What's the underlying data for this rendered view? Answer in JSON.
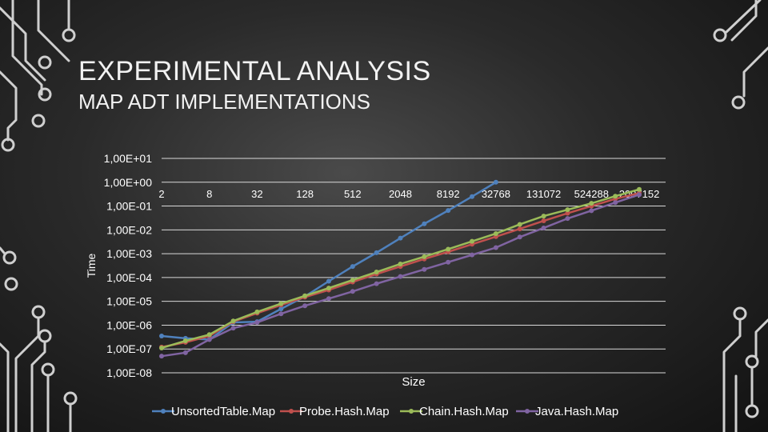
{
  "slide": {
    "title": "EXPERIMENTAL ANALYSIS",
    "subtitle": "MAP ADT IMPLEMENTATIONS"
  },
  "chart_data": {
    "type": "line",
    "xlabel": "Size",
    "ylabel": "Time",
    "y_scale": "log10",
    "ylim": [
      1e-08,
      10
    ],
    "y_tick_labels": [
      "1,00E+01",
      "1,00E+00",
      "1,00E-01",
      "1,00E-02",
      "1,00E-03",
      "1,00E-04",
      "1,00E-05",
      "1,00E-06",
      "1,00E-07",
      "1,00E-08"
    ],
    "categories": [
      "2",
      "8",
      "32",
      "128",
      "512",
      "2048",
      "8192",
      "32768",
      "131072",
      "524288",
      "2097152"
    ],
    "legend_position": "bottom",
    "grid": true,
    "series": [
      {
        "name": "UnsortedTable.Map",
        "color": "#4f81bd",
        "x": [
          1,
          1.5,
          2,
          2.5,
          3,
          3.5,
          4,
          4.5,
          5,
          5.5,
          6,
          6.5,
          7,
          7.5,
          8
        ],
        "y": [
          3.5e-07,
          2.8e-07,
          2.5e-07,
          1.3e-06,
          1.4e-06,
          4.8e-06,
          1.6e-05,
          7e-05,
          0.00029,
          0.0011,
          0.0045,
          0.018,
          0.065,
          0.25,
          1.0
        ]
      },
      {
        "name": "Probe.Hash.Map",
        "color": "#c0504d",
        "x": [
          1,
          1.5,
          2,
          2.5,
          3,
          3.5,
          4,
          4.5,
          5,
          5.5,
          6,
          6.5,
          7,
          7.5,
          8,
          8.5,
          9,
          9.5,
          10,
          10.5,
          11
        ],
        "y": [
          1.2e-07,
          1.9e-07,
          3.5e-07,
          1.4e-06,
          3.2e-06,
          7e-06,
          1.5e-05,
          3e-05,
          6.5e-05,
          0.00014,
          0.00029,
          0.0006,
          0.0012,
          0.0025,
          0.0052,
          0.011,
          0.024,
          0.05,
          0.1,
          0.2,
          0.35
        ]
      },
      {
        "name": "Chain.Hash.Map",
        "color": "#9bbb59",
        "x": [
          1,
          1.5,
          2,
          2.5,
          3,
          3.5,
          4,
          4.5,
          5,
          5.5,
          6,
          6.5,
          7,
          7.5,
          8,
          8.5,
          9,
          9.5,
          10,
          10.5,
          11
        ],
        "y": [
          1.1e-07,
          2.2e-07,
          4e-07,
          1.5e-06,
          3.6e-06,
          8e-06,
          1.7e-05,
          3.6e-05,
          7.8e-05,
          0.00017,
          0.00037,
          0.00075,
          0.00155,
          0.0033,
          0.007,
          0.017,
          0.038,
          0.07,
          0.13,
          0.26,
          0.5
        ]
      },
      {
        "name": "Java.Hash.Map",
        "color": "#8064a2",
        "x": [
          1,
          1.5,
          2,
          2.5,
          3,
          3.5,
          4,
          4.5,
          5,
          5.5,
          6,
          6.5,
          7,
          7.5,
          8,
          8.5,
          9,
          9.5,
          10,
          10.5,
          11
        ],
        "y": [
          5e-08,
          7e-08,
          2.5e-07,
          7.5e-07,
          1.3e-06,
          3e-06,
          6.5e-06,
          1.3e-05,
          2.6e-05,
          5.5e-05,
          0.00011,
          0.00022,
          0.00044,
          0.00089,
          0.0018,
          0.005,
          0.012,
          0.03,
          0.064,
          0.14,
          0.3
        ]
      }
    ]
  }
}
